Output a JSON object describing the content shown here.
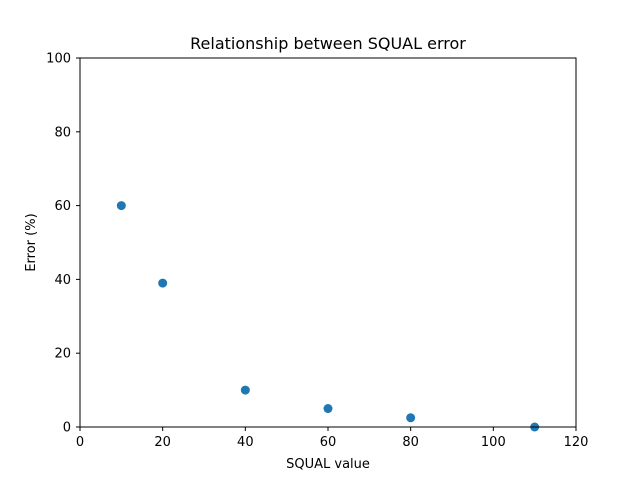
{
  "chart_data": {
    "type": "scatter",
    "title": "Relationship between SQUAL error",
    "xlabel": "SQUAL value",
    "ylabel": "Error (%)",
    "xlim": [
      0,
      120
    ],
    "ylim": [
      0,
      100
    ],
    "xticks": [
      0,
      20,
      40,
      60,
      80,
      100,
      120
    ],
    "yticks": [
      0,
      20,
      40,
      60,
      80,
      100
    ],
    "grid": false,
    "series": [
      {
        "color": "#1f77b4",
        "points": [
          {
            "x": 10,
            "y": 60
          },
          {
            "x": 20,
            "y": 39
          },
          {
            "x": 40,
            "y": 10
          },
          {
            "x": 60,
            "y": 5
          },
          {
            "x": 80,
            "y": 2.5
          },
          {
            "x": 110,
            "y": 0
          }
        ]
      }
    ]
  }
}
